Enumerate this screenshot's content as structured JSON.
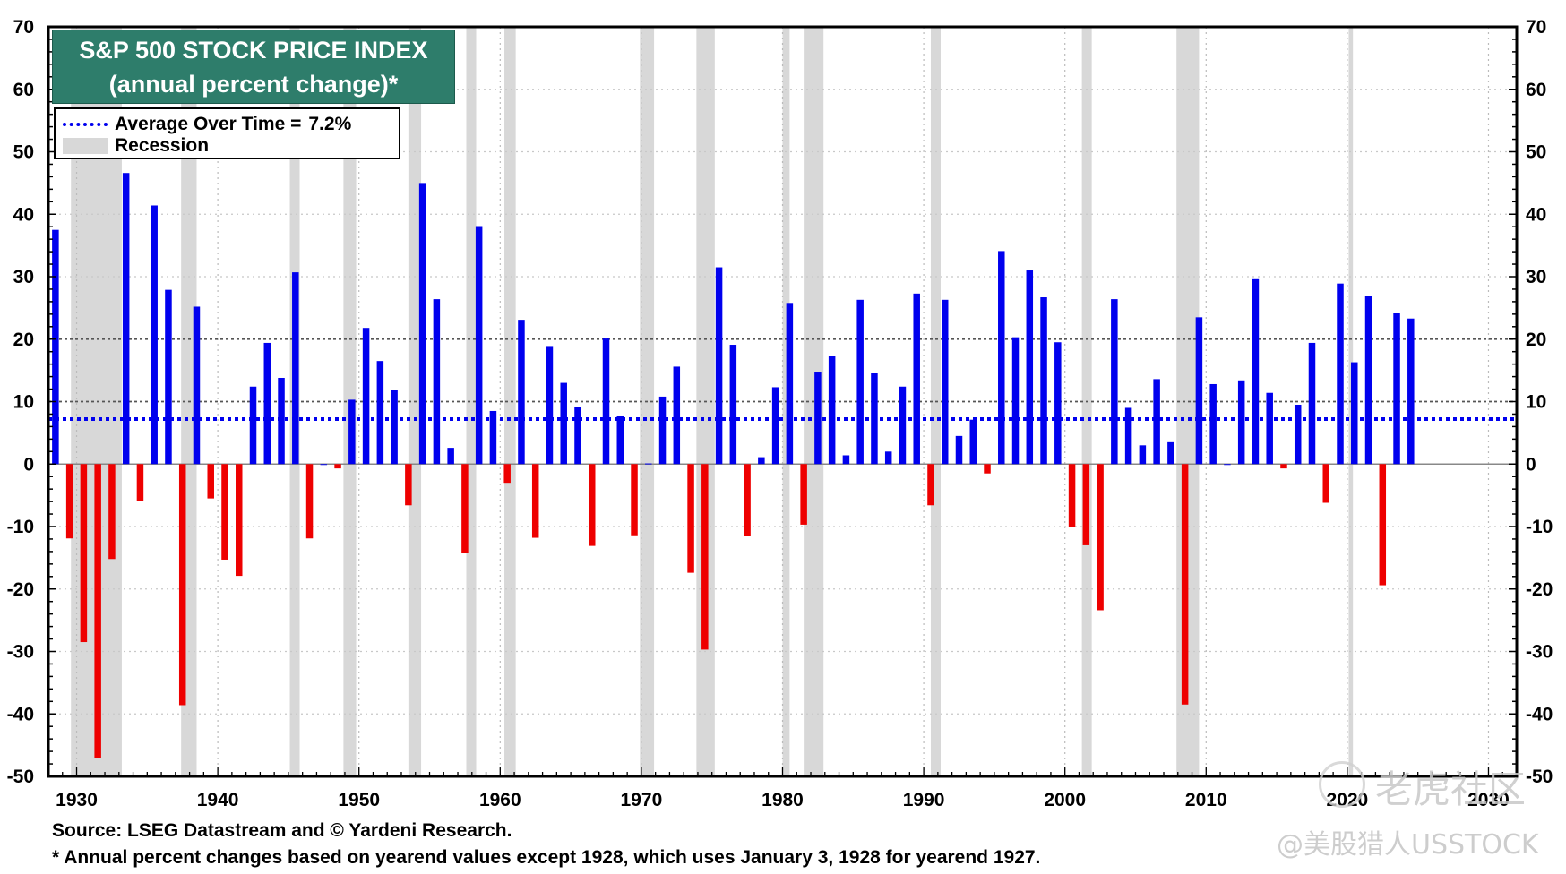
{
  "chart_data": {
    "type": "bar",
    "title": "S&P 500 STOCK PRICE INDEX",
    "subtitle": "(annual percent change)*",
    "legend": {
      "average_label": "Average Over Time =",
      "average_value_label": "7.2%",
      "recession_label": "Recession"
    },
    "average": 7.2,
    "reference_lines": [
      10,
      20
    ],
    "ylim": [
      -50,
      70
    ],
    "y_ticks": [
      70,
      60,
      50,
      40,
      30,
      20,
      10,
      0,
      -10,
      -20,
      -30,
      -40,
      -50
    ],
    "xlim": [
      1928,
      2032
    ],
    "x_ticks": [
      "1930",
      "1940",
      "1950",
      "1960",
      "1970",
      "1980",
      "1990",
      "2000",
      "2010",
      "2020",
      "2030"
    ],
    "x_tick_values": [
      1930,
      1940,
      1950,
      1960,
      1970,
      1980,
      1990,
      2000,
      2010,
      2020,
      2030
    ],
    "positive_color": "#0000ee",
    "negative_color": "#ee0000",
    "recession_color": "#d8d8d8",
    "average_color": "#0000ee",
    "title_bg_color": "#2e7d6b",
    "recessions": [
      [
        1929.6,
        1933.2
      ],
      [
        1937.4,
        1938.5
      ],
      [
        1945.1,
        1945.8
      ],
      [
        1948.9,
        1949.8
      ],
      [
        1953.5,
        1954.4
      ],
      [
        1957.6,
        1958.3
      ],
      [
        1960.3,
        1961.1
      ],
      [
        1969.9,
        1970.9
      ],
      [
        1973.9,
        1975.2
      ],
      [
        1980.0,
        1980.5
      ],
      [
        1981.5,
        1982.9
      ],
      [
        1990.5,
        1991.2
      ],
      [
        2001.2,
        2001.9
      ],
      [
        2007.9,
        2009.5
      ],
      [
        2020.1,
        2020.4
      ]
    ],
    "series": [
      {
        "name": "Annual percent change",
        "years": [
          1928,
          1929,
          1930,
          1931,
          1932,
          1933,
          1934,
          1935,
          1936,
          1937,
          1938,
          1939,
          1940,
          1941,
          1942,
          1943,
          1944,
          1945,
          1946,
          1947,
          1948,
          1949,
          1950,
          1951,
          1952,
          1953,
          1954,
          1955,
          1956,
          1957,
          1958,
          1959,
          1960,
          1961,
          1962,
          1963,
          1964,
          1965,
          1966,
          1967,
          1968,
          1969,
          1970,
          1971,
          1972,
          1973,
          1974,
          1975,
          1976,
          1977,
          1978,
          1979,
          1980,
          1981,
          1982,
          1983,
          1984,
          1985,
          1986,
          1987,
          1988,
          1989,
          1990,
          1991,
          1992,
          1993,
          1994,
          1995,
          1996,
          1997,
          1998,
          1999,
          2000,
          2001,
          2002,
          2003,
          2004,
          2005,
          2006,
          2007,
          2008,
          2009,
          2010,
          2011,
          2012,
          2013,
          2014,
          2015,
          2016,
          2017,
          2018,
          2019,
          2020,
          2021,
          2022,
          2023,
          2024
        ],
        "values": [
          37.5,
          -11.9,
          -28.5,
          -47.1,
          -15.2,
          46.6,
          -5.9,
          41.4,
          27.9,
          -38.6,
          25.2,
          -5.5,
          -15.3,
          -17.9,
          12.4,
          19.4,
          13.8,
          30.7,
          -11.9,
          0.0,
          -0.7,
          10.3,
          21.8,
          16.5,
          11.8,
          -6.6,
          45.0,
          26.4,
          2.6,
          -14.3,
          38.1,
          8.5,
          -3.0,
          23.1,
          -11.8,
          18.9,
          13.0,
          9.1,
          -13.1,
          20.1,
          7.7,
          -11.4,
          0.1,
          10.8,
          15.6,
          -17.4,
          -29.7,
          31.5,
          19.1,
          -11.5,
          1.1,
          12.3,
          25.8,
          -9.7,
          14.8,
          17.3,
          1.4,
          26.3,
          14.6,
          2.0,
          12.4,
          27.3,
          -6.6,
          26.3,
          4.5,
          7.1,
          -1.5,
          34.1,
          20.3,
          31.0,
          26.7,
          19.5,
          -10.1,
          -13.0,
          -23.4,
          26.4,
          9.0,
          3.0,
          13.6,
          3.5,
          -38.5,
          23.5,
          12.8,
          0.0,
          13.4,
          29.6,
          11.4,
          -0.7,
          9.5,
          19.4,
          -6.2,
          28.9,
          16.3,
          26.9,
          -19.4,
          24.2,
          23.3
        ]
      }
    ]
  },
  "footer": {
    "source": "Source: LSEG Datastream and © Yardeni Research.",
    "note": "* Annual percent changes based on yearend values except 1928, which uses January 3, 1928 for yearend 1927."
  },
  "watermark": {
    "community": "老虎社区",
    "handle": "@美股猎人USSTOCK"
  }
}
